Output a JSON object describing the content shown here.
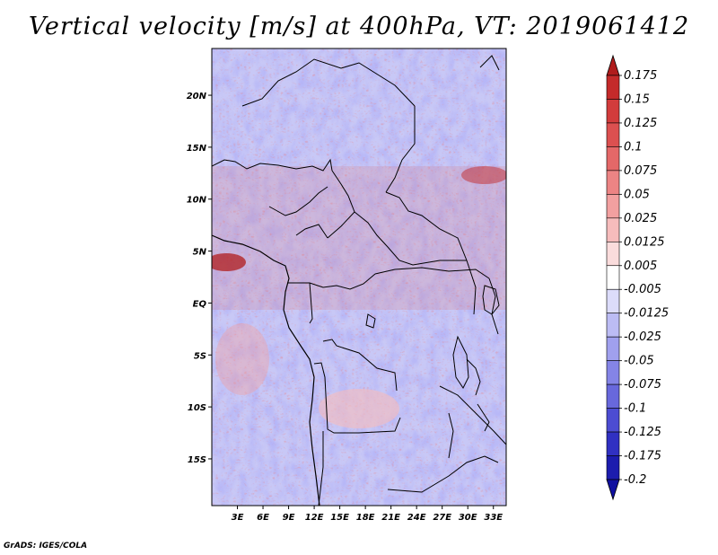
{
  "title": "Vertical velocity [m/s] at 400hPa, VT: 2019061412",
  "credit": "GrADS: IGES/COLA",
  "map": {
    "lon_range": [
      0,
      34.5
    ],
    "lat_range": [
      -19.5,
      24.5
    ],
    "x_ticks": [
      "3E",
      "6E",
      "9E",
      "12E",
      "15E",
      "18E",
      "21E",
      "24E",
      "27E",
      "30E",
      "33E"
    ],
    "x_tick_values": [
      3,
      6,
      9,
      12,
      15,
      18,
      21,
      24,
      27,
      30,
      33
    ],
    "y_ticks": [
      "20N",
      "15N",
      "10N",
      "5N",
      "EQ",
      "5S",
      "10S",
      "15S"
    ],
    "y_tick_values": [
      20,
      15,
      10,
      5,
      0,
      -5,
      -10,
      -15
    ]
  },
  "colorbar": {
    "labels": [
      "0.175",
      "0.15",
      "0.125",
      "0.1",
      "0.075",
      "0.05",
      "0.025",
      "0.0125",
      "0.005",
      "-0.005",
      "-0.0125",
      "-0.025",
      "-0.05",
      "-0.075",
      "-0.1",
      "-0.125",
      "-0.175",
      "-0.2"
    ],
    "colors": [
      "#b01c1c",
      "#c42a2a",
      "#d23c3c",
      "#dc5050",
      "#e46868",
      "#ec8484",
      "#f2a0a0",
      "#f6bcbc",
      "#fadcdc",
      "#ffffff",
      "#dcdcfa",
      "#bcbcf4",
      "#a0a0ee",
      "#8484e6",
      "#6868dc",
      "#4c4cd2",
      "#3030c2",
      "#1c1cae",
      "#1010a0"
    ]
  }
}
